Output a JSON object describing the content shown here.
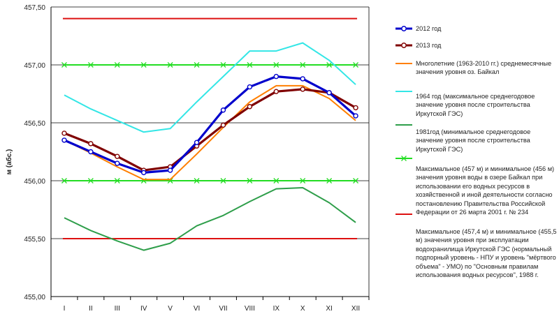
{
  "chart_data": {
    "type": "line",
    "ylabel": "м (абс.)",
    "ylim": [
      455.0,
      457.5
    ],
    "yticks": [
      "457,50",
      "457,00",
      "456,50",
      "456,00",
      "455,50",
      "455,00"
    ],
    "ytick_values": [
      457.5,
      457.0,
      456.5,
      456.0,
      455.5,
      455.0
    ],
    "categories": [
      "I",
      "II",
      "III",
      "IV",
      "V",
      "VI",
      "VII",
      "VIII",
      "IX",
      "X",
      "XI",
      "XII"
    ],
    "series": [
      {
        "name": "2012 год",
        "color": "#0000cc",
        "marker": "circle",
        "values": [
          456.35,
          456.25,
          456.15,
          456.07,
          456.09,
          456.33,
          456.61,
          456.81,
          456.9,
          456.88,
          456.76,
          456.56
        ]
      },
      {
        "name": "2013 год",
        "color": "#800000",
        "marker": "circle",
        "values": [
          456.41,
          456.32,
          456.21,
          456.09,
          456.12,
          456.3,
          456.48,
          456.64,
          456.77,
          456.79,
          456.76,
          456.63
        ]
      },
      {
        "name": "Многолетние (1963-2010 гг.) среднемесячные значения уровня оз. Байкал",
        "color": "#ff7f00",
        "marker": "none",
        "values": [
          456.35,
          456.24,
          456.12,
          456.01,
          456.01,
          456.23,
          456.46,
          456.68,
          456.82,
          456.82,
          456.71,
          456.52
        ]
      },
      {
        "name": "1964 год (максимальное среднегодовое значение уровня после строительства Иркутской ГЭС)",
        "color": "#33e6e6",
        "marker": "none",
        "values": [
          456.74,
          456.62,
          456.52,
          456.42,
          456.45,
          456.68,
          456.9,
          457.12,
          457.12,
          457.19,
          457.04,
          456.83
        ]
      },
      {
        "name": "1981год (минимальное среднегодовое значение уровня после строительства Иркутской ГЭС)",
        "color": "#2e9e4a",
        "marker": "none",
        "values": [
          455.68,
          455.57,
          455.48,
          455.4,
          455.46,
          455.61,
          455.7,
          455.82,
          455.93,
          455.94,
          455.81,
          455.64
        ]
      },
      {
        "name": "Максимальное (457 м) и минимальное (456 м) значения уровня воды в озере Байкал при использовании его водных ресурсов в хозяйственной и иной деятельности согласно постановлению Правительства Российской Федерации от 26 марта 2001 г. № 234",
        "color": "#22dd22",
        "marker": "x",
        "lines": [
          457.0,
          456.0
        ]
      },
      {
        "name": "Максимальное (457,4 м) и минимальное (455,5 м) значения  уровня при эксплуатации водохранилища Иркутской ГЭС (нормальный подпорный уровень - НПУ и уровень \"мёртвого объема\" - УМО) по \"Основным правилам использования водных ресурсов\", 1988 г.",
        "color": "#dd1111",
        "marker": "none",
        "lines": [
          457.4,
          455.5
        ]
      }
    ],
    "legend": "right",
    "grid": true
  },
  "legend": {
    "items": [
      {
        "label": "2012 год",
        "color": "#0000cc",
        "symbol": "line-circle"
      },
      {
        "label": "2013 год",
        "color": "#800000",
        "symbol": "line-circle"
      },
      {
        "label": "Многолетние (1963-2010 гг.) среднемесячные значения уровня оз. Байкал",
        "color": "#ff7f00",
        "symbol": "line"
      },
      {
        "label": "1964 год (максимальное среднегодовое значение уровня после строительства Иркутской ГЭС)",
        "color": "#33e6e6",
        "symbol": "line"
      },
      {
        "label": "1981год (минимальное среднегодовое значение уровня после строительства Иркутской ГЭС)",
        "color": "#2e9e4a",
        "symbol": "line"
      },
      {
        "label": "Максимальное (457 м) и минимальное (456 м) значения уровня воды в озере Байкал при использовании его водных ресурсов в хозяйственной и иной деятельности согласно постановлению Правительства Российской Федерации от 26 марта 2001 г. № 234",
        "color": "#22dd22",
        "symbol": "line-x"
      },
      {
        "label": "Максимальное (457,4 м) и минимальное (455,5 м) значения  уровня при эксплуатации водохранилища Иркутской ГЭС (нормальный подпорный уровень - НПУ и уровень \"мёртвого объема\" - УМО) по \"Основным правилам использования водных ресурсов\", 1988 г.",
        "color": "#dd1111",
        "symbol": "line"
      }
    ]
  }
}
